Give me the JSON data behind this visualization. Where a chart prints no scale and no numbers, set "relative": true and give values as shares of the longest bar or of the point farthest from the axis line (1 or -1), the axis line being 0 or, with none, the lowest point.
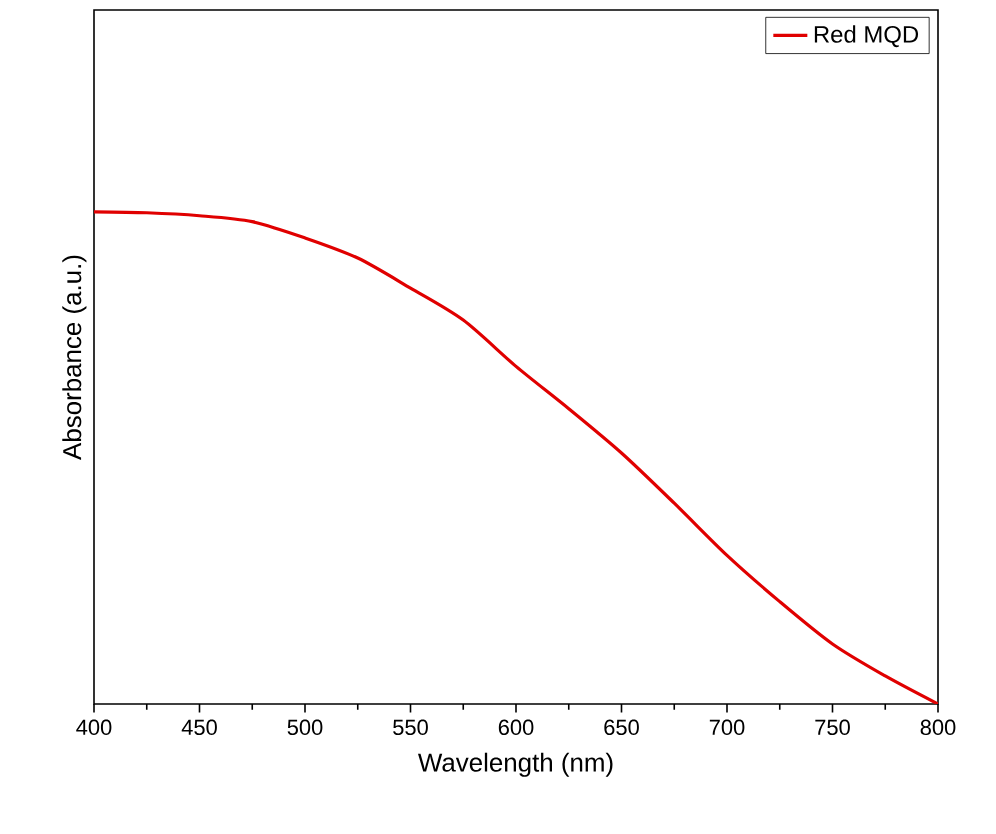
{
  "chart_data": {
    "type": "line",
    "xlabel": "Wavelength (nm)",
    "ylabel": "Absorbance (a.u.)",
    "relative": true,
    "xlim": [
      400,
      800
    ],
    "xticks": [
      400,
      450,
      500,
      550,
      600,
      650,
      700,
      750,
      800
    ],
    "legend": "top right",
    "grid": false,
    "series": [
      {
        "name": "Red MQD",
        "color": "#e00000",
        "x": [
          400,
          425,
          450,
          475,
          500,
          525,
          550,
          575,
          600,
          625,
          650,
          675,
          700,
          725,
          750,
          775,
          800
        ],
        "values": [
          1,
          0.998,
          0.992,
          0.98,
          0.947,
          0.906,
          0.845,
          0.78,
          0.686,
          0.6,
          0.51,
          0.408,
          0.302,
          0.208,
          0.122,
          0.057,
          0
        ]
      }
    ]
  }
}
